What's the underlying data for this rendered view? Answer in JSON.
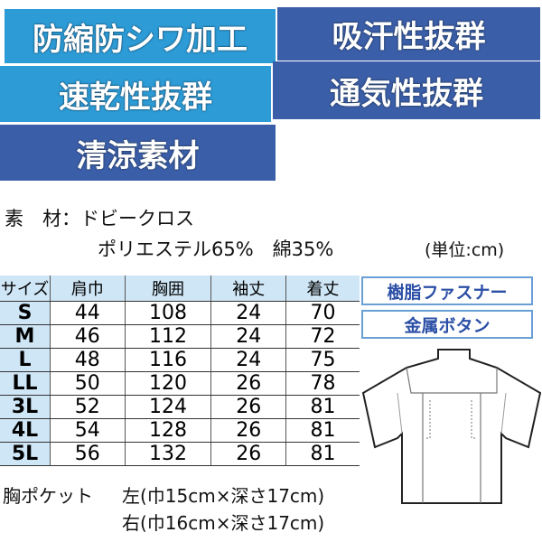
{
  "features": [
    "防縮防シワ加工",
    "吸汗性抜群",
    "速乾性抜群",
    "通気性抜群",
    "清涼素材"
  ],
  "material": {
    "label": "素　材：",
    "fabric": "ドビークロス",
    "composition": "ポリエステル65%　綿35%",
    "unit": "(単位:cm)"
  },
  "size_table": {
    "headers": [
      "サイズ",
      "肩巾",
      "胸囲",
      "袖丈",
      "着丈"
    ],
    "rows": [
      [
        "S",
        "44",
        "108",
        "24",
        "70"
      ],
      [
        "M",
        "46",
        "112",
        "24",
        "72"
      ],
      [
        "L",
        "48",
        "116",
        "24",
        "75"
      ],
      [
        "LL",
        "50",
        "120",
        "26",
        "78"
      ],
      [
        "3L",
        "52",
        "124",
        "26",
        "81"
      ],
      [
        "4L",
        "54",
        "128",
        "26",
        "81"
      ],
      [
        "5L",
        "56",
        "132",
        "26",
        "81"
      ]
    ]
  },
  "pocket": {
    "label": "胸ポケット",
    "left": "左(巾15cm×深さ17cm)",
    "right": "右(巾16cm×深さ17cm)"
  },
  "tags": [
    "樹脂ファスナー",
    "金属ボタン"
  ],
  "colors": {
    "light_banner": "#2c9bd6",
    "dark_banner": "#3b5ea8",
    "table_header": "#cfe6f6"
  }
}
